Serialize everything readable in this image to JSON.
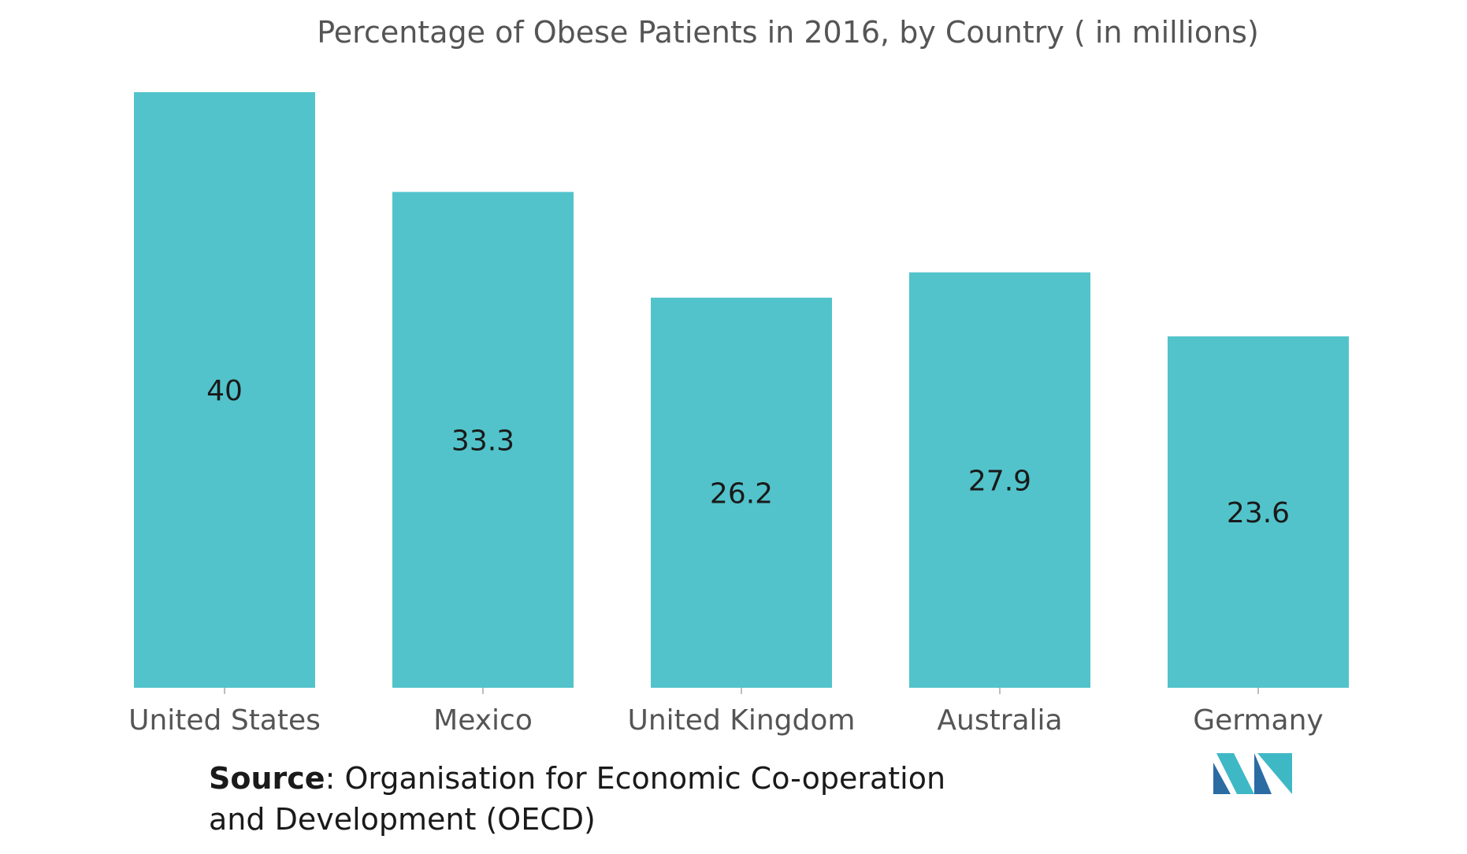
{
  "chart_data": {
    "type": "bar",
    "title": "Percentage of Obese Patients in 2016, by Country ( in millions)",
    "xlabel": "",
    "ylabel": "",
    "categories": [
      "United States",
      "Mexico",
      "United Kingdom",
      "Australia",
      "Germany"
    ],
    "values": [
      40,
      33.3,
      26.2,
      27.9,
      23.6
    ],
    "value_labels": [
      "40",
      "33.3",
      "26.2",
      "27.9",
      "23.6"
    ],
    "ylim": [
      0,
      40
    ],
    "grid": false,
    "legend": "none",
    "bar_color": "#52c3cb"
  },
  "source": {
    "label": "Source",
    "text_line1": ": Organisation for Economic Co-operation",
    "text_line2": "and Development (OECD)"
  },
  "logo": {
    "icon": "mordor-intelligence-logo",
    "colors": [
      "#2b6ca3",
      "#3fb8c6"
    ]
  }
}
